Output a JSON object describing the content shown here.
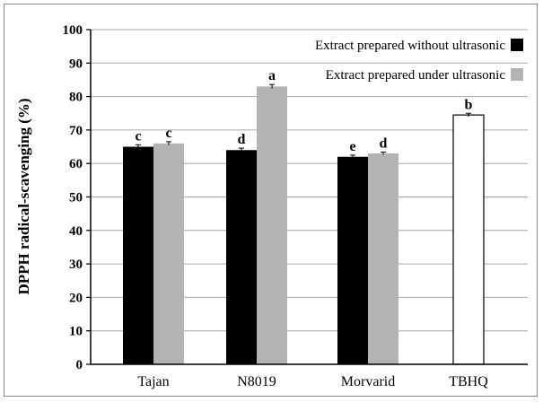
{
  "chart_data": {
    "type": "bar",
    "title": "",
    "xlabel": "",
    "ylabel": "DPPH radical-scavenging (%)",
    "ylim": [
      0,
      100
    ],
    "yticks": [
      0,
      10,
      20,
      30,
      40,
      50,
      60,
      70,
      80,
      90,
      100
    ],
    "grid": true,
    "legend_position": "top-right",
    "categories": [
      "Tajan",
      "N8019",
      "Morvarid",
      "TBHQ"
    ],
    "series": [
      {
        "name": "Extract prepared without ultrasonic",
        "color": "#000000",
        "values": [
          65,
          64,
          62,
          null
        ],
        "errors": [
          0.6,
          0.6,
          0.5,
          null
        ],
        "labels": [
          "c",
          "d",
          "e",
          null
        ]
      },
      {
        "name": "Extract prepared under ultrasonic",
        "color": "#b3b3b3",
        "values": [
          66,
          83,
          63,
          null
        ],
        "errors": [
          0.5,
          0.6,
          0.4,
          null
        ],
        "labels": [
          "c",
          "a",
          "d",
          null
        ]
      },
      {
        "name": "",
        "color": "#ffffff",
        "values": [
          null,
          null,
          null,
          74.5
        ],
        "errors": [
          null,
          null,
          null,
          0.5
        ],
        "labels": [
          null,
          null,
          null,
          "b"
        ]
      }
    ]
  }
}
